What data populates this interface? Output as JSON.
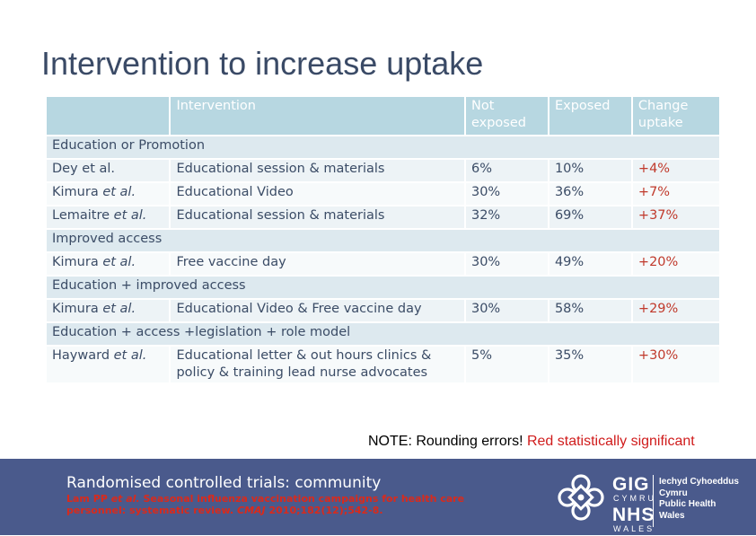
{
  "title": "Intervention to increase uptake",
  "table": {
    "headers": [
      "",
      "Intervention",
      "Not exposed",
      "Exposed",
      "Change uptake"
    ],
    "rows": [
      {
        "type": "section",
        "label": "Education or Promotion"
      },
      {
        "type": "data",
        "author": "Dey",
        "et_al": "et al.",
        "et_al_italic": false,
        "intervention": "Educational session & materials",
        "not_exposed": "6%",
        "exposed": "10%",
        "change": "+4%",
        "change_significant": true
      },
      {
        "type": "data",
        "author": "Kimura",
        "et_al": "et al.",
        "et_al_italic": true,
        "intervention": "Educational Video",
        "not_exposed": "30%",
        "exposed": "36%",
        "change": "+7%",
        "change_significant": true
      },
      {
        "type": "data",
        "author": "Lemaitre",
        "et_al": "et al.",
        "et_al_italic": true,
        "intervention": "Educational session & materials",
        "not_exposed": "32%",
        "exposed": "69%",
        "change": "+37%",
        "change_significant": true
      },
      {
        "type": "section",
        "label": "Improved access"
      },
      {
        "type": "data",
        "author": "Kimura",
        "et_al": "et al.",
        "et_al_italic": true,
        "intervention": "Free vaccine day",
        "not_exposed": "30%",
        "exposed": "49%",
        "change": "+20%",
        "change_significant": true
      },
      {
        "type": "section",
        "label": "Education + improved access"
      },
      {
        "type": "data",
        "author": "Kimura",
        "et_al": "et al.",
        "et_al_italic": true,
        "intervention": "Educational Video & Free vaccine day",
        "not_exposed": "30%",
        "exposed": "58%",
        "change": "+29%",
        "change_significant": true
      },
      {
        "type": "section",
        "label": "Education + access +legislation + role model"
      },
      {
        "type": "data",
        "author": "Hayward",
        "et_al": "et al.",
        "et_al_italic": true,
        "intervention": "Educational letter & out hours clinics & policy & training lead nurse advocates",
        "not_exposed": "5%",
        "exposed": "35%",
        "change": "+30%",
        "change_significant": true
      }
    ]
  },
  "note": {
    "prefix": "NOTE: Rounding errors!",
    "highlight": "Red statistically significant"
  },
  "footer": {
    "title": "Randomised controlled trials: community",
    "reference_authors": "Lam PP",
    "reference_etal": "et al.",
    "reference_text": "Seasonal influenza vaccination campaigns for health care personnel: systematic review.",
    "reference_journal": "CMAJ",
    "reference_citation": "2010;182(12);542-8."
  },
  "logo": {
    "gig": "GIG",
    "cymru": "CYMRU",
    "nhs": "NHS",
    "wales": "WALES",
    "names": [
      "Iechyd Cyhoeddus",
      "Cymru",
      "Public Health",
      "Wales"
    ]
  },
  "colors": {
    "title": "#3a4a66",
    "header_bg": "#b7d7e1",
    "section_bg": "#dde9ef",
    "significant": "#c0392b",
    "footer_bg": "#4a5a8c",
    "footer_ref": "#d92a1c"
  }
}
